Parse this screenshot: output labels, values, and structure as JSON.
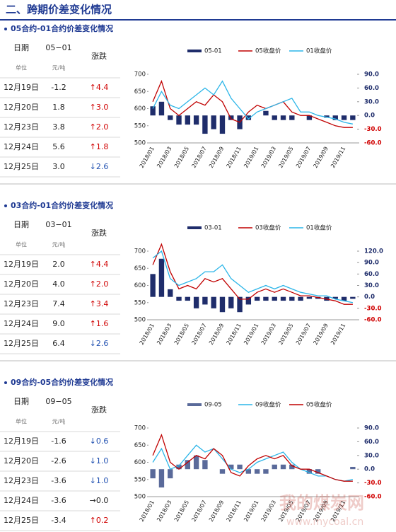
{
  "header": {
    "title": "二、跨期价差变化情况"
  },
  "panels": [
    {
      "title": "05合约-01合约价差变化情况",
      "table": {
        "header": [
          "日期",
          "05−01",
          "涨跌"
        ],
        "units": [
          "单位",
          "元/吨"
        ],
        "rows": [
          [
            "12月19日",
            "-1.2",
            "↑4.4"
          ],
          [
            "12月20日",
            "1.8",
            "↑3.0"
          ],
          [
            "12月23日",
            "3.8",
            "↑2.0"
          ],
          [
            "12月24日",
            "5.6",
            "↑1.8"
          ],
          [
            "12月25日",
            "3.0",
            "↓2.6"
          ]
        ]
      },
      "chart_data": {
        "type": "combo",
        "categories": [
          "2018/01",
          null,
          "2018/03",
          null,
          "2018/05",
          null,
          "2018/07",
          null,
          "2018/09",
          null,
          "2018/11",
          null,
          "2019/01",
          null,
          "2019/03",
          null,
          "2019/05",
          null,
          "2019/07",
          null,
          "2019/09",
          null,
          "2019/11",
          null
        ],
        "series": [
          {
            "name": "05-01",
            "type": "bar",
            "axis": "y2",
            "color": "#1f2d6b",
            "values": [
              20,
              30,
              -10,
              -20,
              -20,
              -20,
              -40,
              -30,
              -40,
              -10,
              -30,
              -10,
              0,
              10,
              -10,
              -10,
              -10,
              0,
              -10,
              0,
              -5,
              -10,
              -10,
              -10
            ]
          },
          {
            "name": "05收盘价",
            "color": "#c00000",
            "values": [
              620,
              680,
              600,
              580,
              600,
              620,
              610,
              640,
              620,
              570,
              560,
              590,
              610,
              600,
              610,
              620,
              590,
              580,
              580,
              570,
              560,
              550,
              545,
              545
            ]
          },
          {
            "name": "01收盘价",
            "color": "#2bb5e8",
            "values": [
              600,
              650,
              610,
              600,
              620,
              640,
              660,
              640,
              680,
              630,
              600,
              570,
              590,
              600,
              610,
              620,
              630,
              590,
              590,
              580,
              575,
              570,
              560,
              555
            ]
          }
        ],
        "ylim": [
          500,
          700
        ],
        "yticks": [
          500,
          550,
          600,
          650,
          700
        ],
        "y2lim": [
          -60,
          90
        ],
        "y2ticks": [
          {
            "value": 90,
            "label": "90.0"
          },
          {
            "value": 60,
            "label": "60.0"
          },
          {
            "value": 30,
            "label": "30.0"
          },
          {
            "value": 0,
            "label": "0.0"
          },
          {
            "value": -30,
            "label": "-30.0"
          },
          {
            "value": -60,
            "label": "-60.0"
          }
        ]
      }
    },
    {
      "title": "03合约-01合约价差变化情况",
      "table": {
        "header": [
          "日期",
          "03−01",
          "涨跌"
        ],
        "units": [
          "单位",
          "元/吨"
        ],
        "rows": [
          [
            "12月19日",
            "2.0",
            "↑4.4"
          ],
          [
            "12月20日",
            "4.0",
            "↑2.0"
          ],
          [
            "12月23日",
            "7.4",
            "↑3.4"
          ],
          [
            "12月24日",
            "9.0",
            "↑1.6"
          ],
          [
            "12月25日",
            "6.4",
            "↓2.6"
          ]
        ]
      },
      "chart_data": {
        "type": "combo",
        "categories": [
          "2018/01",
          null,
          "2018/03",
          null,
          "2018/05",
          null,
          "2018/07",
          null,
          "2018/09",
          null,
          "2018/11",
          null,
          "2019/01",
          null,
          "2019/03",
          null,
          "2019/05",
          null,
          "2019/07",
          null,
          "2019/09",
          null,
          "2019/11",
          null
        ],
        "series": [
          {
            "name": "03-01",
            "type": "bar",
            "axis": "y2",
            "color": "#1f2d6b",
            "values": [
              60,
              100,
              20,
              -10,
              -10,
              -30,
              -20,
              -30,
              -40,
              -30,
              -40,
              -20,
              -10,
              -10,
              -10,
              -10,
              -10,
              -10,
              -5,
              -5,
              -10,
              -5,
              -10,
              -5
            ]
          },
          {
            "name": "03收盘价",
            "color": "#c00000",
            "values": [
              660,
              720,
              640,
              590,
              600,
              590,
              620,
              610,
              620,
              590,
              560,
              560,
              580,
              590,
              580,
              590,
              580,
              570,
              570,
              565,
              560,
              555,
              545,
              545
            ]
          },
          {
            "name": "01收盘价",
            "color": "#2bb5e8",
            "values": [
              680,
              700,
              620,
              600,
              610,
              620,
              640,
              640,
              660,
              620,
              600,
              580,
              590,
              600,
              590,
              600,
              590,
              580,
              575,
              570,
              570,
              560,
              555,
              550
            ]
          }
        ],
        "ylim": [
          500,
          700
        ],
        "yticks": [
          500,
          550,
          600,
          650,
          700
        ],
        "y2lim": [
          -60,
          120
        ],
        "y2ticks": [
          {
            "value": 120,
            "label": "120.0"
          },
          {
            "value": 90,
            "label": "90.0"
          },
          {
            "value": 60,
            "label": "60.0"
          },
          {
            "value": 30,
            "label": "30.0"
          },
          {
            "value": 0,
            "label": "0.0"
          },
          {
            "value": -30,
            "label": "-30.0"
          },
          {
            "value": -60,
            "label": "-60.0"
          }
        ]
      }
    },
    {
      "title": "09合约-05合约价差变化情况",
      "table": {
        "header": [
          "日期",
          "09−05",
          "涨跌"
        ],
        "units": [
          "单位",
          "元/吨"
        ],
        "rows": [
          [
            "12月19日",
            "-1.6",
            "↓0.6"
          ],
          [
            "12月20日",
            "-2.6",
            "↓1.0"
          ],
          [
            "12月23日",
            "-3.6",
            "↓1.0"
          ],
          [
            "12月24日",
            "-3.6",
            "→0.0"
          ],
          [
            "12月25日",
            "-3.4",
            "↑0.2"
          ]
        ]
      },
      "chart_data": {
        "type": "combo",
        "categories": [
          "2018/01",
          null,
          "2018/03",
          null,
          "2018/05",
          null,
          "2018/07",
          null,
          "2018/09",
          null,
          "2018/11",
          null,
          "2019/01",
          null,
          "2019/03",
          null,
          "2019/05",
          null,
          "2019/07",
          null,
          "2019/09",
          null,
          "2019/11",
          null
        ],
        "series": [
          {
            "name": "09-05",
            "type": "bar",
            "axis": "y2",
            "color": "#5a6a9a",
            "values": [
              -20,
              -40,
              -20,
              10,
              20,
              30,
              20,
              0,
              -10,
              10,
              10,
              -10,
              -10,
              -10,
              10,
              10,
              10,
              0,
              -10,
              -10,
              0,
              0,
              0,
              5
            ]
          },
          {
            "name": "09收盘价",
            "color": "#2bb5e8",
            "values": [
              600,
              640,
              580,
              590,
              620,
              650,
              630,
              640,
              610,
              580,
              570,
              580,
              600,
              610,
              620,
              630,
              600,
              580,
              570,
              560,
              560,
              550,
              545,
              550
            ]
          },
          {
            "name": "05收盘价",
            "color": "#c00000",
            "values": [
              620,
              680,
              600,
              580,
              600,
              620,
              610,
              640,
              620,
              570,
              560,
              590,
              610,
              620,
              610,
              620,
              590,
              580,
              580,
              570,
              560,
              550,
              545,
              545
            ]
          }
        ],
        "ylim": [
          500,
          700
        ],
        "yticks": [
          500,
          550,
          600,
          650,
          700
        ],
        "y2lim": [
          -60,
          90
        ],
        "y2ticks": [
          {
            "value": 90,
            "label": "90.0"
          },
          {
            "value": 60,
            "label": "60.0"
          },
          {
            "value": 30,
            "label": "30.0"
          },
          {
            "value": 0,
            "label": "0.0"
          },
          {
            "value": -30,
            "label": "-30.0"
          },
          {
            "value": -60,
            "label": "-60.0"
          }
        ]
      }
    }
  ],
  "watermark": {
    "name": "我的煤炭网",
    "url": "www.mycoal.cn"
  }
}
